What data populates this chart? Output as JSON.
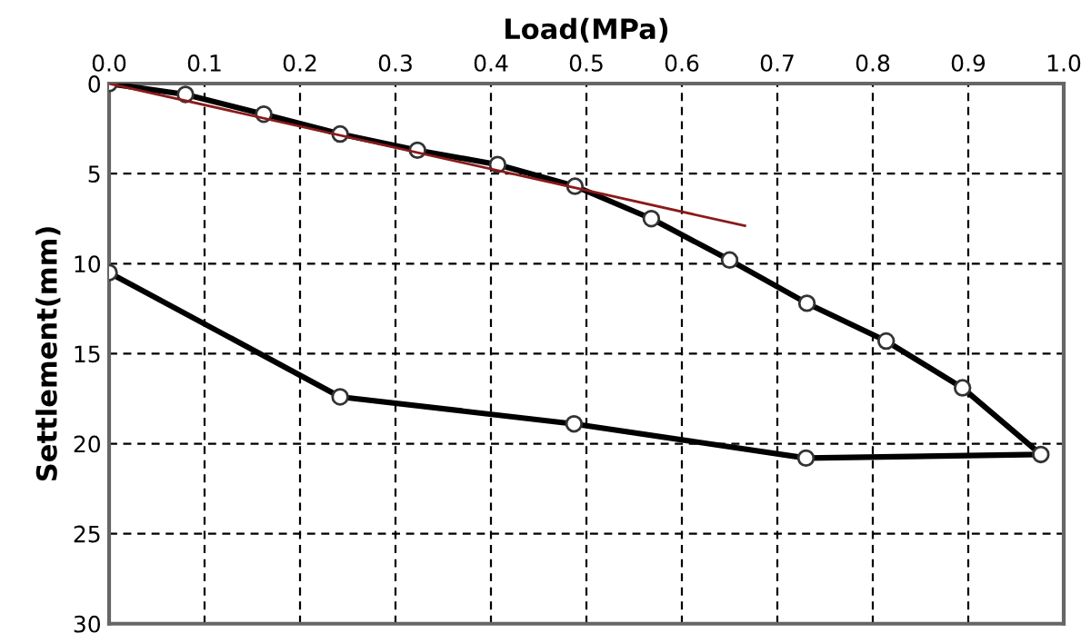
{
  "chart_data": {
    "type": "line",
    "xlabel": "Load(MPa)",
    "ylabel": "Settlement(mm)",
    "xlim": [
      0,
      1
    ],
    "xticks": [
      {
        "value": 0,
        "label": "0.0"
      },
      {
        "value": 0.1,
        "label": "0.1"
      },
      {
        "value": 0.2,
        "label": "0.2"
      },
      {
        "value": 0.3,
        "label": "0.3"
      },
      {
        "value": 0.4,
        "label": "0.4"
      },
      {
        "value": 0.5,
        "label": "0.5"
      },
      {
        "value": 0.6,
        "label": "0.6"
      },
      {
        "value": 0.7,
        "label": "0.7"
      },
      {
        "value": 0.8,
        "label": "0.8"
      },
      {
        "value": 0.9,
        "label": "0.9"
      },
      {
        "value": 1,
        "label": "1.0"
      }
    ],
    "ylim": [
      30,
      0
    ],
    "yticks": [
      0,
      5,
      10,
      15,
      20,
      25,
      30
    ],
    "grid": true,
    "legend": false,
    "series": [
      {
        "color": "#000000",
        "marker": "circle",
        "line_style": "solid",
        "x": [
          0,
          0.08,
          0.162,
          0.242,
          0.323,
          0.407,
          0.488,
          0.568,
          0.65,
          0.731,
          0.814,
          0.894,
          0.976,
          0.73,
          0.487,
          0.242,
          0
        ],
        "values": [
          0,
          0.6,
          1.7,
          2.8,
          3.7,
          4.5,
          5.7,
          7.5,
          9.8,
          12.2,
          14.3,
          16.9,
          20.6,
          20.8,
          18.9,
          17.4,
          10.5
        ]
      },
      {
        "color": "#8b1a1a",
        "marker": "none",
        "line_style": "solid",
        "x": [
          0,
          0.666
        ],
        "values": [
          0,
          7.9
        ]
      }
    ]
  }
}
